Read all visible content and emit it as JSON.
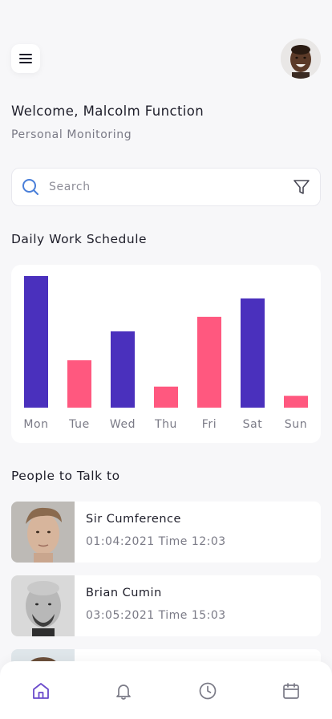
{
  "header": {
    "menu_icon": "hamburger-menu-icon",
    "avatar_icon": "user-avatar"
  },
  "welcome": {
    "title": "Welcome, Malcolm Function",
    "subtitle": "Personal Monitoring"
  },
  "search": {
    "placeholder": "Search",
    "search_icon": "search-icon",
    "filter_icon": "filter-icon"
  },
  "schedule": {
    "title": "Daily Work Schedule"
  },
  "colors": {
    "purple": "#4a30bd",
    "pink": "#ff587f",
    "active_nav": "#6a4acb",
    "inactive_nav": "#7a7a86"
  },
  "chart_data": {
    "type": "bar",
    "categories": [
      "Mon",
      "Tue",
      "Wed",
      "Thu",
      "Fri",
      "Sat",
      "Sun"
    ],
    "values": [
      100,
      36,
      58,
      16,
      69,
      83,
      9
    ],
    "bar_colors": [
      "#4a30bd",
      "#ff587f",
      "#4a30bd",
      "#ff587f",
      "#ff587f",
      "#4a30bd",
      "#ff587f"
    ],
    "title": "",
    "xlabel": "",
    "ylabel": "",
    "ylim": [
      0,
      100
    ],
    "grid": false
  },
  "people": {
    "title": "People to Talk to",
    "items": [
      {
        "name": "Sir Cumference",
        "time": "01:04:2021 Time 12:03"
      },
      {
        "name": "Brian Cumin",
        "time": "03:05:2021 Time 15:03"
      }
    ]
  },
  "nav": {
    "items": [
      {
        "icon": "home-icon",
        "active": true
      },
      {
        "icon": "bell-icon",
        "active": false
      },
      {
        "icon": "clock-icon",
        "active": false
      },
      {
        "icon": "calendar-icon",
        "active": false
      }
    ]
  }
}
